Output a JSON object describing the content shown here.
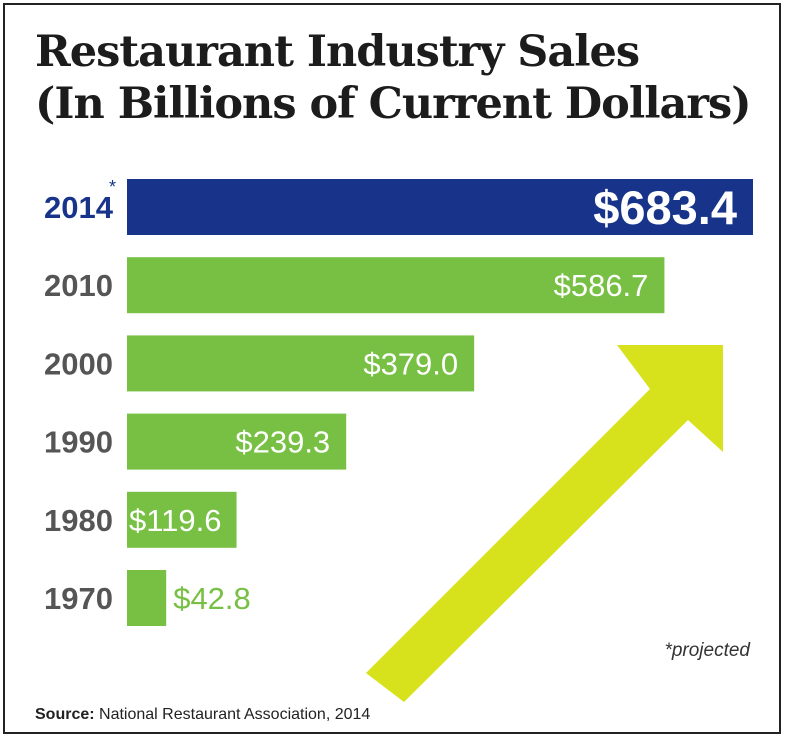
{
  "title_line1": "Restaurant Industry Sales",
  "title_line2": "(In Billions of Current Dollars)",
  "footnote": "*projected",
  "source_label": "Source:",
  "source_text": "National Restaurant Association, 2014",
  "colors": {
    "highlight_bar": "#17348a",
    "bar": "#77c043",
    "arrow": "#d7e21c",
    "highlight_year": "#17348a",
    "year": "#555555"
  },
  "chart_data": {
    "type": "bar",
    "orientation": "horizontal",
    "title": "Restaurant Industry Sales (In Billions of Current Dollars)",
    "categories": [
      "2014",
      "2010",
      "2000",
      "1990",
      "1980",
      "1970"
    ],
    "values": [
      683.4,
      586.7,
      379.0,
      239.3,
      119.6,
      42.8
    ],
    "labels": [
      "$683.4",
      "$586.7",
      "$379.0",
      "$239.3",
      "$119.6",
      "$42.8"
    ],
    "highlight": "2014",
    "highlight_marker": "*",
    "unit": "Billions of Current Dollars",
    "grid": false,
    "legend": "none"
  }
}
